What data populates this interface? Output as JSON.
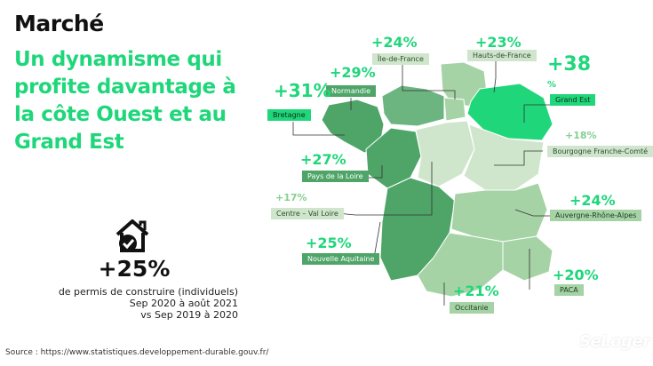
{
  "title": "Marché",
  "subtitle": "Un dynamisme qui profite davantage à la côte Ouest et au Grand Est",
  "stat": {
    "value": "+25%",
    "line1": "de permis de construire (individuels)",
    "line2": "Sep 2020 à août 2021",
    "line3": "vs Sep 2019 à 2020"
  },
  "source": "Source : https://www.statistiques.developpement-durable.gouv.fr/",
  "logo": "SeLoger",
  "regions": {
    "idf": {
      "pct": "+24%",
      "name": "Île-de-France"
    },
    "hdf": {
      "pct": "+23%",
      "name": "Hauts-de-France"
    },
    "ge": {
      "pct": "+38",
      "pct2": "%",
      "name": "Grand Est"
    },
    "bfc": {
      "pct": "+18%",
      "name": "Bourgogne Franche-Comté"
    },
    "norm": {
      "pct": "+29%",
      "name": "Normandie"
    },
    "bret": {
      "pct": "+31%",
      "name": "Bretagne"
    },
    "pdl": {
      "pct": "+27%",
      "name": "Pays de la Loire"
    },
    "cvl": {
      "pct": "+17%",
      "name": "Centre – Val Loire"
    },
    "ara": {
      "pct": "+24%",
      "name": "Auvergne-Rhône-Alpes"
    },
    "na": {
      "pct": "+25%",
      "name": "Nouvelle Aquitaine"
    },
    "paca": {
      "pct": "+20%",
      "name": "PACA"
    },
    "occ": {
      "pct": "+21%",
      "name": "Occitanie"
    }
  },
  "colors": {
    "accent": "#1fd77a",
    "dark_green": "#4fa568",
    "mid_green": "#a6d3a5",
    "light_green": "#cfe6cc"
  }
}
